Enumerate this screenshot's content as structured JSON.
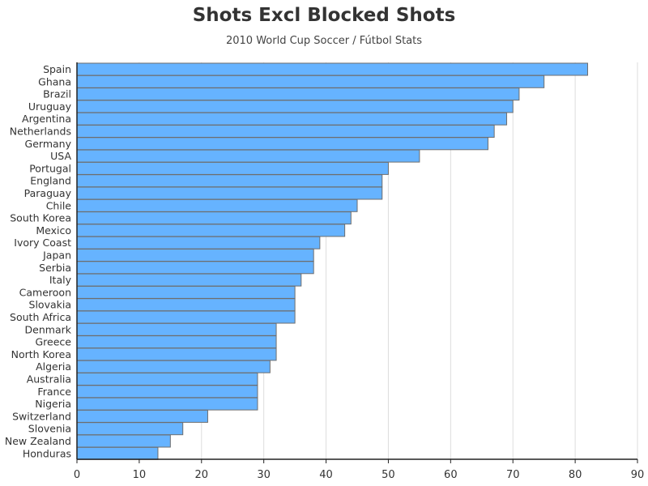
{
  "chart_data": {
    "type": "bar",
    "orientation": "horizontal",
    "title": "Shots Excl Blocked Shots",
    "subtitle": "2010 World Cup Soccer / Fútbol Stats",
    "xlabel": "",
    "ylabel": "",
    "xlim": [
      0,
      90
    ],
    "xticks": [
      0,
      10,
      20,
      30,
      40,
      50,
      60,
      70,
      80,
      90
    ],
    "grid": true,
    "bar_color": "#66b3ff",
    "bar_edge_color": "#6e6e6e",
    "grid_color": "#dddddd",
    "categories": [
      "Spain",
      "Ghana",
      "Brazil",
      "Uruguay",
      "Argentina",
      "Netherlands",
      "Germany",
      "USA",
      "Portugal",
      "England",
      "Paraguay",
      "Chile",
      "South Korea",
      "Mexico",
      "Ivory Coast",
      "Japan",
      "Serbia",
      "Italy",
      "Cameroon",
      "Slovakia",
      "South Africa",
      "Denmark",
      "Greece",
      "North Korea",
      "Algeria",
      "Australia",
      "France",
      "Nigeria",
      "Switzerland",
      "Slovenia",
      "New Zealand",
      "Honduras"
    ],
    "values": [
      82,
      75,
      71,
      70,
      69,
      67,
      66,
      55,
      50,
      49,
      49,
      45,
      44,
      43,
      39,
      38,
      38,
      36,
      35,
      35,
      35,
      32,
      32,
      32,
      31,
      29,
      29,
      29,
      21,
      17,
      15,
      13
    ]
  }
}
